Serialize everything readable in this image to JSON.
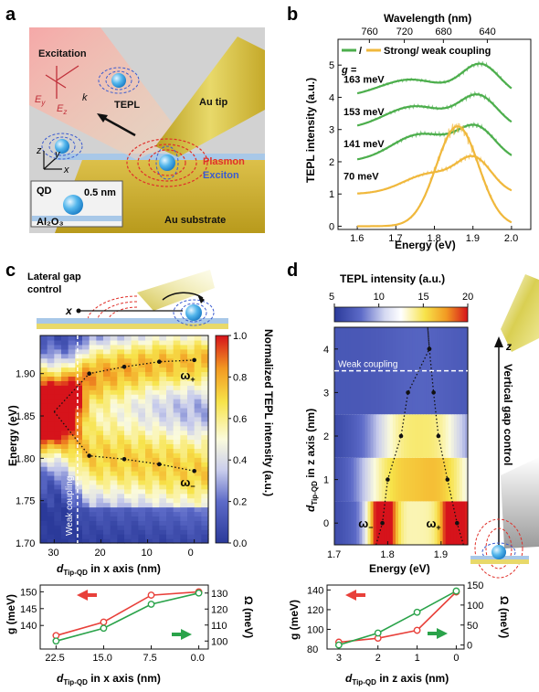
{
  "panels": {
    "a": {
      "label": "a",
      "excitation": "Excitation",
      "ey": "E",
      "ey_sub": "y",
      "ez": "E",
      "ez_sub": "z",
      "k": "k",
      "tepl": "TEPL",
      "au_tip": "Au tip",
      "plasmon": "Plasmon",
      "exciton": "Exciton",
      "axis_z": "z",
      "axis_y": "y",
      "axis_x": "x",
      "qd": "QD",
      "qd_size": "0.5 nm",
      "al2o3": "Al₂O₃",
      "au_substrate": "Au substrate"
    },
    "b": {
      "label": "b"
    },
    "c": {
      "label": "c",
      "lateral_1": "Lateral gap",
      "lateral_2": "control",
      "x": "x"
    },
    "d": {
      "label": "d",
      "vertical": "Vertical gap control",
      "z": "z"
    }
  },
  "chart_data": [
    {
      "type": "line",
      "panel": "b",
      "xlabel": "Energy (eV)",
      "x2label": "Wavelength (nm)",
      "ylabel": "TEPL intensity (a.u.)",
      "xlim": [
        1.55,
        2.05
      ],
      "ylim": [
        -0.1,
        5.8
      ],
      "xticks": [
        1.6,
        1.7,
        1.8,
        1.9,
        2.0
      ],
      "xtick_labels": [
        "1.6",
        "1.7",
        "1.8",
        "1.9",
        "2.0"
      ],
      "yticks": [
        0,
        1,
        2,
        3,
        4,
        5
      ],
      "x2ticks": [
        760,
        720,
        680,
        640
      ],
      "legend_slash": "/",
      "legend_text": "Strong/ weak coupling",
      "g_label": "g =",
      "colors": {
        "strong": "#4cae4c",
        "weak": "#f0b83c"
      },
      "series": [
        {
          "label": "163 meV",
          "coupling": "strong",
          "offset": 4.0,
          "peaks": [
            [
              1.738,
              0.08,
              0.55
            ],
            [
              1.92,
              0.05,
              1.0
            ]
          ],
          "x_range": [
            1.6,
            2.0
          ]
        },
        {
          "label": "153 meV",
          "coupling": "strong",
          "offset": 3.0,
          "peaks": [
            [
              1.75,
              0.08,
              0.72
            ],
            [
              1.915,
              0.05,
              1.0
            ]
          ],
          "x_range": [
            1.6,
            2.0
          ]
        },
        {
          "label": "141 meV",
          "coupling": "strong",
          "offset": 2.0,
          "peaks": [
            [
              1.765,
              0.075,
              0.85
            ],
            [
              1.91,
              0.05,
              1.0
            ]
          ],
          "x_range": [
            1.6,
            2.0
          ]
        },
        {
          "label": "70 meV",
          "coupling": "weak",
          "offset": 1.0,
          "peaks": [
            [
              1.79,
              0.07,
              0.62
            ],
            [
              1.905,
              0.045,
              1.0
            ]
          ],
          "x_range": [
            1.6,
            2.0
          ]
        },
        {
          "label": "",
          "coupling": "weak",
          "offset": 0.0,
          "peaks": [
            [
              1.86,
              0.055,
              3.1
            ]
          ],
          "x_range": [
            1.6,
            2.0
          ]
        }
      ]
    },
    {
      "type": "heatmap",
      "panel": "c",
      "xlabel": "d",
      "xlabel_sub": "Tip-QD",
      "xlabel_rest": " in x axis (nm)",
      "ylabel": "Energy (eV)",
      "xlim": [
        33,
        -3
      ],
      "ylim": [
        1.7,
        1.945
      ],
      "xticks": [
        30,
        20,
        10,
        0
      ],
      "yticks": [
        1.7,
        1.75,
        1.8,
        1.85,
        1.9
      ],
      "ytick_labels": [
        "1.70",
        "1.75",
        "1.80",
        "1.85",
        "1.90"
      ],
      "colorbar_label": "Normalized TEPL intensity (a.u.)",
      "colorbar_ticks": [
        0.0,
        0.2,
        0.4,
        0.6,
        0.8,
        1.0
      ],
      "colorbar_tick_labels": [
        "0.0",
        "0.2",
        "0.4",
        "0.6",
        "0.8",
        "1.0"
      ],
      "weak_label": "Weak coupling",
      "weak_boundary_x": 25,
      "omega_plus": "ω",
      "omega_minus": "ω",
      "sign_plus": "+",
      "sign_minus": "−",
      "upper_branch": {
        "x": [
          30,
          22.5,
          15,
          7.5,
          0
        ],
        "y": [
          1.855,
          1.9,
          1.908,
          1.914,
          1.916
        ]
      },
      "lower_branch": {
        "x": [
          30,
          22.5,
          15,
          7.5,
          0
        ],
        "y": [
          1.855,
          1.803,
          1.799,
          1.793,
          1.785
        ]
      }
    },
    {
      "type": "heatmap",
      "panel": "d",
      "xlabel": "Energy (eV)",
      "ylabel": "d",
      "ylabel_sub": "Tip-QD",
      "ylabel_rest": " in z axis (nm)",
      "xlim": [
        1.7,
        1.95
      ],
      "ylim": [
        -0.5,
        4.5
      ],
      "xticks": [
        1.7,
        1.8,
        1.9
      ],
      "xtick_labels": [
        "1.7",
        "1.8",
        "1.9"
      ],
      "yticks": [
        0,
        1,
        2,
        3,
        4
      ],
      "colorbar_label": "TEPL intensity (a.u.)",
      "colorbar_ticks": [
        5,
        10,
        15,
        20
      ],
      "weak_label": "Weak coupling",
      "weak_boundary_z": 3.5,
      "omega_plus": "ω",
      "omega_minus": "ω",
      "sign_plus": "+",
      "sign_minus": "−",
      "left_branch": {
        "x": [
          1.79,
          1.8,
          1.825,
          1.838,
          1.878
        ],
        "y": [
          0,
          1,
          2,
          3,
          4
        ]
      },
      "right_branch": {
        "x": [
          1.93,
          1.912,
          1.895,
          1.886,
          1.878
        ],
        "y": [
          0,
          1,
          2,
          3,
          4
        ]
      }
    },
    {
      "type": "line",
      "panel": "c-bottom",
      "xlabel": "d",
      "xlabel_sub": "Tip-QD",
      "xlabel_rest": " in x axis (nm)",
      "ylabel_left": "g (meV)",
      "ylabel_right": "Ω (meV)",
      "xlim": [
        25,
        -1.5
      ],
      "ylim_left": [
        133,
        152
      ],
      "ylim_right": [
        95,
        135
      ],
      "xticks": [
        22.5,
        15.0,
        7.5,
        0.0
      ],
      "xtick_labels": [
        "22.5",
        "15.0",
        "7.5",
        "0.0"
      ],
      "yticks_left": [
        140,
        145,
        150
      ],
      "yticks_right": [
        100,
        110,
        120,
        130
      ],
      "x": [
        22.5,
        15.0,
        7.5,
        0.0
      ],
      "g": [
        137,
        141,
        149,
        150
      ],
      "omega": [
        100,
        108,
        123,
        130
      ]
    },
    {
      "type": "line",
      "panel": "d-bottom",
      "xlabel": "d",
      "xlabel_sub": "Tip-QD",
      "xlabel_rest": " in z axis (nm)",
      "ylabel_left": "g (meV)",
      "ylabel_right": "Ω (meV)",
      "xlim": [
        3.3,
        -0.2
      ],
      "ylim_left": [
        80,
        145
      ],
      "ylim_right": [
        -10,
        150
      ],
      "xticks": [
        3,
        2,
        1,
        0
      ],
      "yticks_left": [
        80,
        100,
        120,
        140
      ],
      "yticks_right": [
        0,
        50,
        100,
        150
      ],
      "x": [
        3,
        2,
        1,
        0
      ],
      "g": [
        87,
        91,
        99,
        138
      ],
      "omega": [
        0,
        30,
        82,
        135
      ]
    }
  ]
}
